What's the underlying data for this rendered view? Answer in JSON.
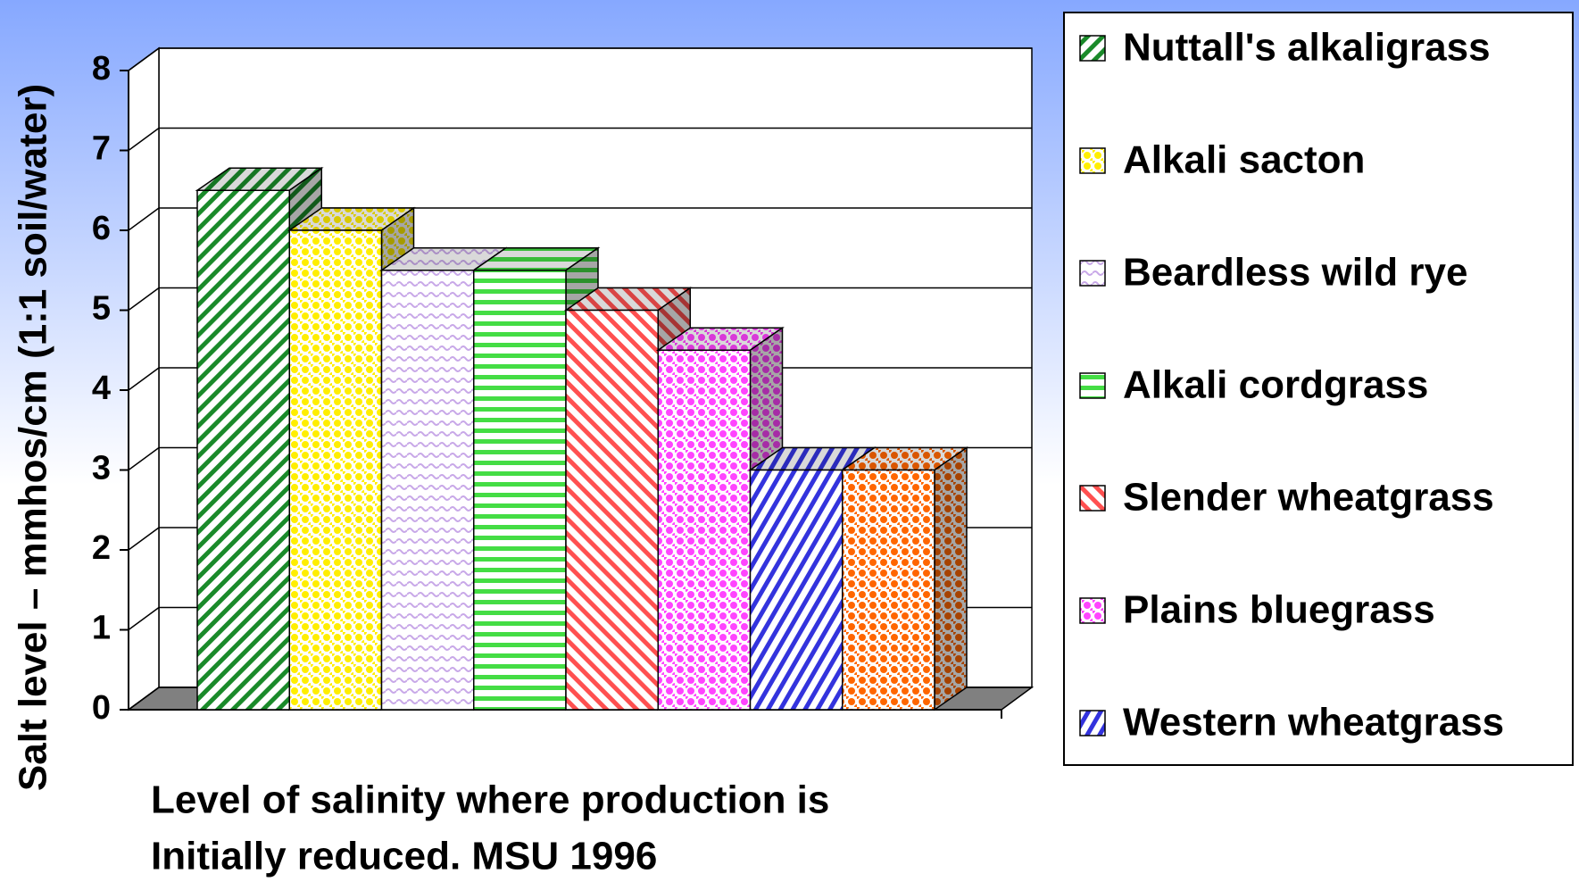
{
  "chart_data": {
    "type": "bar3d",
    "title": [
      "Level of salinity where production is",
      "Initially reduced. MSU 1996"
    ],
    "y_label": "Salt level – mmhos/cm (1:1 soil/water)",
    "ylim": [
      0,
      8
    ],
    "yticks": [
      0,
      1,
      2,
      3,
      4,
      5,
      6,
      7,
      8
    ],
    "grid": true,
    "legend": "right",
    "series": [
      {
        "name": "Nuttall's alkaligrass",
        "color": "#1a8a2a",
        "values": [
          6.5
        ]
      },
      {
        "name": "Alkali sacton",
        "color": "#ffee00",
        "values": [
          6
        ]
      },
      {
        "name": "Beardless wild rye",
        "color": "#c8a8e8",
        "values": [
          5.5
        ]
      },
      {
        "name": "Alkali cordgrass",
        "color": "#44dd44",
        "values": [
          5.5
        ]
      },
      {
        "name": "Slender wheatgrass",
        "color": "#ff5050",
        "values": [
          5
        ]
      },
      {
        "name": "Plains bluegrass",
        "color": "#ff44ff",
        "values": [
          4.5
        ]
      },
      {
        "name": "Western wheatgrass",
        "color": "#3333dd",
        "values": [
          3
        ]
      },
      {
        "name": null,
        "color": "#ff6600",
        "values": [
          3
        ]
      }
    ]
  }
}
